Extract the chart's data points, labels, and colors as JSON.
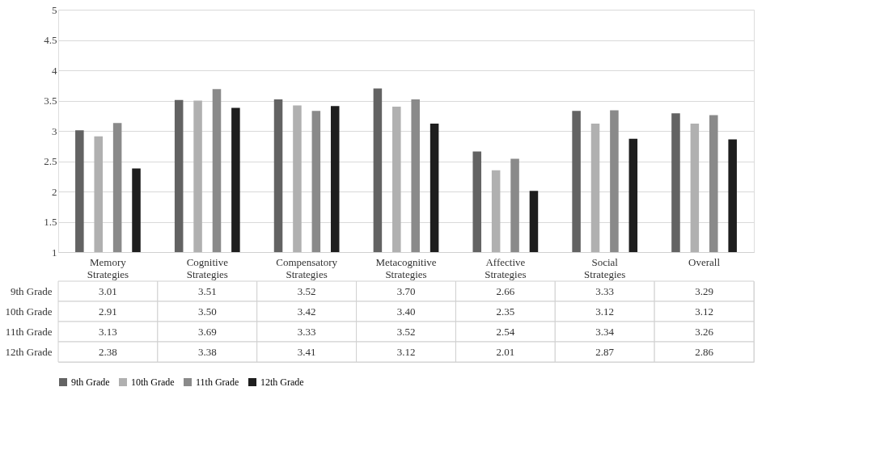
{
  "chart_data": {
    "type": "bar",
    "categories": [
      "Memory Strategies",
      "Cognitive Strategies",
      "Compensatory Strategies",
      "Metacognitive Strategies",
      "Affective Strategies",
      "Social Strategies",
      "Overall"
    ],
    "series": [
      {
        "name": "9th Grade",
        "color": "#636363",
        "values": [
          3.01,
          3.51,
          3.52,
          3.7,
          2.66,
          3.33,
          3.29
        ],
        "value_labels": [
          "3.01",
          "3.51",
          "3.52",
          "3.70",
          "2.66",
          "3.33",
          "3.29"
        ]
      },
      {
        "name": "10th Grade",
        "color": "#b0b0b0",
        "values": [
          2.91,
          3.5,
          3.42,
          3.4,
          2.35,
          3.12,
          3.12
        ],
        "value_labels": [
          "2.91",
          "3.50",
          "3.42",
          "3.40",
          "2.35",
          "3.12",
          "3.12"
        ]
      },
      {
        "name": "11th Grade",
        "color": "#8a8a8a",
        "values": [
          3.13,
          3.69,
          3.33,
          3.52,
          2.54,
          3.34,
          3.26
        ],
        "value_labels": [
          "3.13",
          "3.69",
          "3.33",
          "3.52",
          "2.54",
          "3.34",
          "3.26"
        ]
      },
      {
        "name": "12th Grade",
        "color": "#1e1e1e",
        "values": [
          2.38,
          3.38,
          3.41,
          3.12,
          2.01,
          2.87,
          2.86
        ],
        "value_labels": [
          "2.38",
          "3.38",
          "3.41",
          "3.12",
          "2.01",
          "2.87",
          "2.86"
        ]
      }
    ],
    "ylim": [
      1,
      5
    ],
    "yticks": [
      1,
      1.5,
      2,
      2.5,
      3,
      3.5,
      4,
      4.5,
      5
    ],
    "grid": "y",
    "legend": "bottom"
  }
}
